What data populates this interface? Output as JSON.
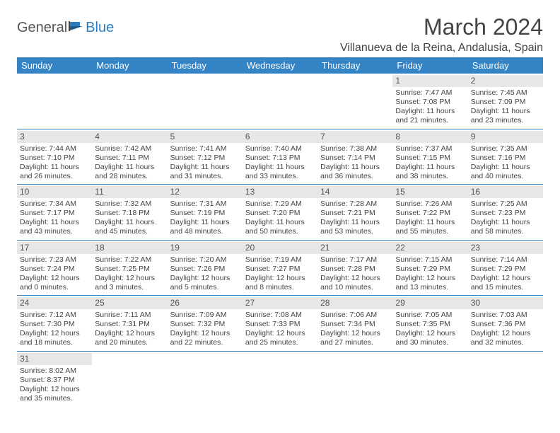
{
  "logo": {
    "part1": "General",
    "part2": "Blue"
  },
  "title": "March 2024",
  "location": "Villanueva de la Reina, Andalusia, Spain",
  "colors": {
    "header_bg": "#3484c5",
    "header_fg": "#ffffff",
    "daynum_bg": "#e7e7e7",
    "border": "#3484c5",
    "logo_accent": "#2b7dbf"
  },
  "day_headers": [
    "Sunday",
    "Monday",
    "Tuesday",
    "Wednesday",
    "Thursday",
    "Friday",
    "Saturday"
  ],
  "weeks": [
    [
      {
        "empty": true
      },
      {
        "empty": true
      },
      {
        "empty": true
      },
      {
        "empty": true
      },
      {
        "empty": true
      },
      {
        "num": "1",
        "sunrise": "Sunrise: 7:47 AM",
        "sunset": "Sunset: 7:08 PM",
        "daylight": "Daylight: 11 hours and 21 minutes."
      },
      {
        "num": "2",
        "sunrise": "Sunrise: 7:45 AM",
        "sunset": "Sunset: 7:09 PM",
        "daylight": "Daylight: 11 hours and 23 minutes."
      }
    ],
    [
      {
        "num": "3",
        "sunrise": "Sunrise: 7:44 AM",
        "sunset": "Sunset: 7:10 PM",
        "daylight": "Daylight: 11 hours and 26 minutes."
      },
      {
        "num": "4",
        "sunrise": "Sunrise: 7:42 AM",
        "sunset": "Sunset: 7:11 PM",
        "daylight": "Daylight: 11 hours and 28 minutes."
      },
      {
        "num": "5",
        "sunrise": "Sunrise: 7:41 AM",
        "sunset": "Sunset: 7:12 PM",
        "daylight": "Daylight: 11 hours and 31 minutes."
      },
      {
        "num": "6",
        "sunrise": "Sunrise: 7:40 AM",
        "sunset": "Sunset: 7:13 PM",
        "daylight": "Daylight: 11 hours and 33 minutes."
      },
      {
        "num": "7",
        "sunrise": "Sunrise: 7:38 AM",
        "sunset": "Sunset: 7:14 PM",
        "daylight": "Daylight: 11 hours and 36 minutes."
      },
      {
        "num": "8",
        "sunrise": "Sunrise: 7:37 AM",
        "sunset": "Sunset: 7:15 PM",
        "daylight": "Daylight: 11 hours and 38 minutes."
      },
      {
        "num": "9",
        "sunrise": "Sunrise: 7:35 AM",
        "sunset": "Sunset: 7:16 PM",
        "daylight": "Daylight: 11 hours and 40 minutes."
      }
    ],
    [
      {
        "num": "10",
        "sunrise": "Sunrise: 7:34 AM",
        "sunset": "Sunset: 7:17 PM",
        "daylight": "Daylight: 11 hours and 43 minutes."
      },
      {
        "num": "11",
        "sunrise": "Sunrise: 7:32 AM",
        "sunset": "Sunset: 7:18 PM",
        "daylight": "Daylight: 11 hours and 45 minutes."
      },
      {
        "num": "12",
        "sunrise": "Sunrise: 7:31 AM",
        "sunset": "Sunset: 7:19 PM",
        "daylight": "Daylight: 11 hours and 48 minutes."
      },
      {
        "num": "13",
        "sunrise": "Sunrise: 7:29 AM",
        "sunset": "Sunset: 7:20 PM",
        "daylight": "Daylight: 11 hours and 50 minutes."
      },
      {
        "num": "14",
        "sunrise": "Sunrise: 7:28 AM",
        "sunset": "Sunset: 7:21 PM",
        "daylight": "Daylight: 11 hours and 53 minutes."
      },
      {
        "num": "15",
        "sunrise": "Sunrise: 7:26 AM",
        "sunset": "Sunset: 7:22 PM",
        "daylight": "Daylight: 11 hours and 55 minutes."
      },
      {
        "num": "16",
        "sunrise": "Sunrise: 7:25 AM",
        "sunset": "Sunset: 7:23 PM",
        "daylight": "Daylight: 11 hours and 58 minutes."
      }
    ],
    [
      {
        "num": "17",
        "sunrise": "Sunrise: 7:23 AM",
        "sunset": "Sunset: 7:24 PM",
        "daylight": "Daylight: 12 hours and 0 minutes."
      },
      {
        "num": "18",
        "sunrise": "Sunrise: 7:22 AM",
        "sunset": "Sunset: 7:25 PM",
        "daylight": "Daylight: 12 hours and 3 minutes."
      },
      {
        "num": "19",
        "sunrise": "Sunrise: 7:20 AM",
        "sunset": "Sunset: 7:26 PM",
        "daylight": "Daylight: 12 hours and 5 minutes."
      },
      {
        "num": "20",
        "sunrise": "Sunrise: 7:19 AM",
        "sunset": "Sunset: 7:27 PM",
        "daylight": "Daylight: 12 hours and 8 minutes."
      },
      {
        "num": "21",
        "sunrise": "Sunrise: 7:17 AM",
        "sunset": "Sunset: 7:28 PM",
        "daylight": "Daylight: 12 hours and 10 minutes."
      },
      {
        "num": "22",
        "sunrise": "Sunrise: 7:15 AM",
        "sunset": "Sunset: 7:29 PM",
        "daylight": "Daylight: 12 hours and 13 minutes."
      },
      {
        "num": "23",
        "sunrise": "Sunrise: 7:14 AM",
        "sunset": "Sunset: 7:29 PM",
        "daylight": "Daylight: 12 hours and 15 minutes."
      }
    ],
    [
      {
        "num": "24",
        "sunrise": "Sunrise: 7:12 AM",
        "sunset": "Sunset: 7:30 PM",
        "daylight": "Daylight: 12 hours and 18 minutes."
      },
      {
        "num": "25",
        "sunrise": "Sunrise: 7:11 AM",
        "sunset": "Sunset: 7:31 PM",
        "daylight": "Daylight: 12 hours and 20 minutes."
      },
      {
        "num": "26",
        "sunrise": "Sunrise: 7:09 AM",
        "sunset": "Sunset: 7:32 PM",
        "daylight": "Daylight: 12 hours and 22 minutes."
      },
      {
        "num": "27",
        "sunrise": "Sunrise: 7:08 AM",
        "sunset": "Sunset: 7:33 PM",
        "daylight": "Daylight: 12 hours and 25 minutes."
      },
      {
        "num": "28",
        "sunrise": "Sunrise: 7:06 AM",
        "sunset": "Sunset: 7:34 PM",
        "daylight": "Daylight: 12 hours and 27 minutes."
      },
      {
        "num": "29",
        "sunrise": "Sunrise: 7:05 AM",
        "sunset": "Sunset: 7:35 PM",
        "daylight": "Daylight: 12 hours and 30 minutes."
      },
      {
        "num": "30",
        "sunrise": "Sunrise: 7:03 AM",
        "sunset": "Sunset: 7:36 PM",
        "daylight": "Daylight: 12 hours and 32 minutes."
      }
    ],
    [
      {
        "num": "31",
        "sunrise": "Sunrise: 8:02 AM",
        "sunset": "Sunset: 8:37 PM",
        "daylight": "Daylight: 12 hours and 35 minutes."
      },
      {
        "empty": true
      },
      {
        "empty": true
      },
      {
        "empty": true
      },
      {
        "empty": true
      },
      {
        "empty": true
      },
      {
        "empty": true
      }
    ]
  ]
}
